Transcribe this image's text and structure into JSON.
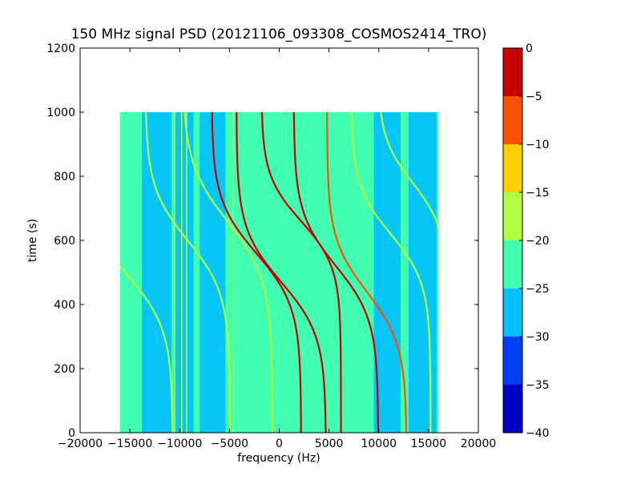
{
  "chart_data": {
    "type": "heatmap",
    "title": "150 MHz signal PSD (20121106_093308_COSMOS2414_TRO)",
    "xlabel": "frequency (Hz)",
    "ylabel": "time (s)",
    "xlim": [
      -20000,
      20000
    ],
    "ylim": [
      0,
      1200
    ],
    "xticks": [
      -20000,
      -15000,
      -10000,
      -5000,
      0,
      5000,
      10000,
      15000,
      20000
    ],
    "yticks": [
      0,
      200,
      400,
      600,
      800,
      1000,
      1200
    ],
    "data_extent": {
      "x": [
        -16000,
        16000
      ],
      "y": [
        0,
        1000
      ]
    },
    "background_level": -22.5,
    "grid": false,
    "colorbar": {
      "levels": [
        -40,
        -35,
        -30,
        -25,
        -20,
        -15,
        -10,
        -5,
        0
      ],
      "ticks": [
        0,
        -5,
        -10,
        -15,
        -20,
        -25,
        -30,
        -35,
        -40
      ],
      "colors": [
        "#0000c8",
        "#0040ff",
        "#00c0ff",
        "#40ffb0",
        "#b0ff40",
        "#ffd000",
        "#ff5000",
        "#c80000"
      ]
    },
    "traces": [
      {
        "center_x": -15200,
        "center_t": 490,
        "width_hz": 9000,
        "k": 0.006,
        "level": -17,
        "name": ""
      },
      {
        "center_x": -9200,
        "center_t": 600,
        "width_hz": 8500,
        "k": 0.006,
        "level": -17,
        "name": ""
      },
      {
        "center_x": -5200,
        "center_t": 660,
        "width_hz": 9000,
        "k": 0.0055,
        "level": -17,
        "name": ""
      },
      {
        "center_x": -2300,
        "center_t": 560,
        "width_hz": 9000,
        "k": 0.006,
        "level": -3,
        "name": ""
      },
      {
        "center_x": 200,
        "center_t": 470,
        "width_hz": 9000,
        "k": 0.006,
        "level": -3,
        "name": ""
      },
      {
        "center_x": 2200,
        "center_t": 660,
        "width_hz": 8000,
        "k": 0.007,
        "level": -3,
        "name": ""
      },
      {
        "center_x": 5700,
        "center_t": 520,
        "width_hz": 8500,
        "k": 0.006,
        "level": -3,
        "name": ""
      },
      {
        "center_x": 8800,
        "center_t": 440,
        "width_hz": 8000,
        "k": 0.006,
        "level": -8,
        "name": ""
      },
      {
        "center_x": 11200,
        "center_t": 620,
        "width_hz": 8000,
        "k": 0.0065,
        "level": -17,
        "name": ""
      },
      {
        "center_x": 13400,
        "center_t": 780,
        "width_hz": 7000,
        "k": 0.007,
        "level": -17,
        "name": ""
      }
    ],
    "vertical_lines": [
      {
        "x": -10500,
        "level": -17
      },
      {
        "x": -9800,
        "level": -17
      },
      {
        "x": -9300,
        "level": -17
      },
      {
        "x": -4600,
        "level": -17
      },
      {
        "x": -1500,
        "level": -21
      },
      {
        "x": 10000,
        "level": -29
      }
    ],
    "quiet_bands": [
      {
        "x": [
          -13800,
          -10800
        ],
        "level": -27.5
      },
      {
        "x": [
          -10500,
          -8600
        ],
        "level": -27.5
      },
      {
        "x": [
          -8000,
          -5400
        ],
        "level": -27.5
      },
      {
        "x": [
          9500,
          12200
        ],
        "level": -27.5
      },
      {
        "x": [
          13000,
          15800
        ],
        "level": -27.5
      }
    ]
  }
}
